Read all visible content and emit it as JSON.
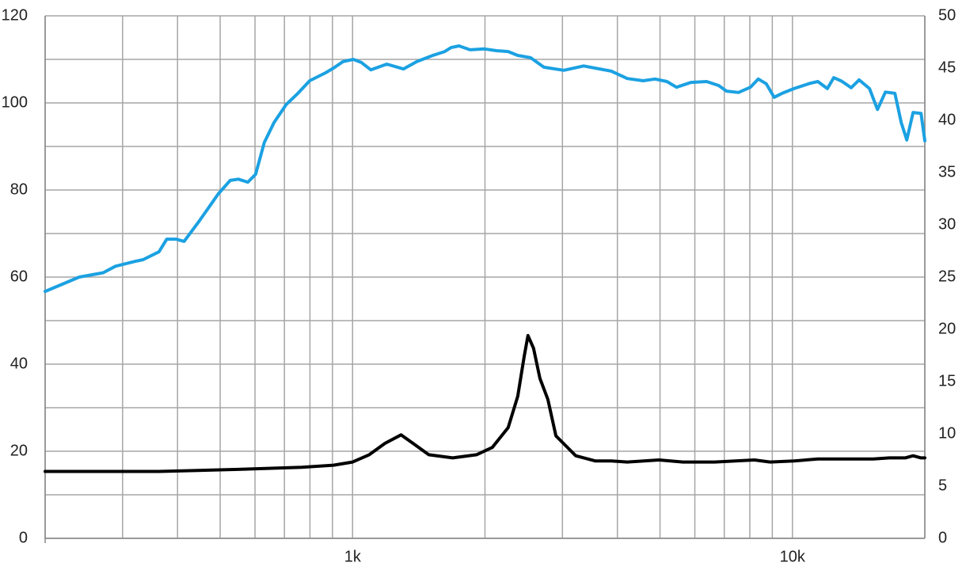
{
  "chart_data": {
    "type": "line",
    "xlim": [
      200,
      20000
    ],
    "log_x": true,
    "xticks": [
      {
        "value": 1000,
        "label": "1k"
      },
      {
        "value": 10000,
        "label": "10k"
      }
    ],
    "xminorticks": [
      200,
      300,
      400,
      500,
      600,
      700,
      800,
      900,
      2000,
      3000,
      4000,
      5000,
      6000,
      7000,
      8000,
      9000,
      20000
    ],
    "ylim": [
      0,
      120
    ],
    "yticks": [
      0,
      20,
      40,
      60,
      80,
      100,
      120
    ],
    "yminorticks": [
      10,
      30,
      50,
      70,
      90,
      110
    ],
    "y2lim": [
      0,
      50
    ],
    "y2ticks": [
      0,
      5,
      10,
      15,
      20,
      25,
      30,
      35,
      40,
      45,
      50
    ],
    "grid": true,
    "series": [
      {
        "color": "#1ba1e2",
        "x": [
          200,
          239,
          271,
          289,
          320,
          334,
          363,
          378,
          397,
          414,
          447,
          495,
          527,
          550,
          578,
          602,
          630,
          663,
          706,
          751,
          799,
          868,
          905,
          951,
          1004,
          1047,
          1100,
          1196,
          1305,
          1400,
          1522,
          1620,
          1675,
          1746,
          1850,
          1994,
          2122,
          2258,
          2374,
          2537,
          2723,
          3021,
          3352,
          3877,
          4212,
          4577,
          4872,
          5185,
          5451,
          5875,
          6385,
          6795,
          7085,
          7540,
          8024,
          8366,
          8718,
          9089,
          9474,
          10083,
          10956,
          11424,
          12006,
          12415,
          12938,
          13601,
          14180,
          14968,
          15606,
          16270,
          17103,
          17677,
          18195,
          18811,
          19610,
          20000
        ],
        "values": [
          56.7,
          60,
          61,
          62.5,
          63.6,
          64,
          65.8,
          68.7,
          68.7,
          68.2,
          72.7,
          79.1,
          82.2,
          82.5,
          81.8,
          83.6,
          90.9,
          95.5,
          99.6,
          102.2,
          105.1,
          106.9,
          108,
          109.5,
          110,
          109.3,
          107.6,
          108.9,
          107.8,
          109.5,
          110.9,
          111.8,
          112.7,
          113.1,
          112.2,
          112.4,
          112,
          111.8,
          110.9,
          110.4,
          108.2,
          107.5,
          108.5,
          107.3,
          105.6,
          105.1,
          105.5,
          104.9,
          103.6,
          104.7,
          104.9,
          104,
          102.7,
          102.4,
          103.6,
          105.5,
          104.4,
          101.3,
          102.2,
          103.3,
          104.5,
          104.9,
          103.3,
          105.8,
          105,
          103.5,
          105.3,
          103.3,
          98.5,
          102.5,
          102.2,
          95.5,
          91.5,
          97.8,
          97.6,
          91.3
        ]
      },
      {
        "color": "#000000",
        "axis": "y2",
        "x": [
          200,
          363,
          550,
          766,
          905,
          1000,
          1091,
          1186,
          1289,
          1371,
          1490,
          1689,
          1913,
          2078,
          2258,
          2374,
          2455,
          2505,
          2579,
          2667,
          2780,
          2899,
          3046,
          3216,
          3567,
          3877,
          4212,
          4975,
          5637,
          6655,
          8193,
          8902,
          10083,
          11424,
          13490,
          15283,
          16610,
          18050,
          18811,
          19610,
          20000
        ],
        "values": [
          6.4,
          6.4,
          6.6,
          6.8,
          7.0,
          7.3,
          8.0,
          9.1,
          9.9,
          9.1,
          8.0,
          7.7,
          8.0,
          8.7,
          10.6,
          13.6,
          17.4,
          19.4,
          18.2,
          15.3,
          13.3,
          9.8,
          8.9,
          7.9,
          7.4,
          7.4,
          7.3,
          7.5,
          7.3,
          7.3,
          7.5,
          7.3,
          7.4,
          7.6,
          7.6,
          7.6,
          7.7,
          7.7,
          7.9,
          7.7,
          7.7
        ]
      }
    ]
  }
}
